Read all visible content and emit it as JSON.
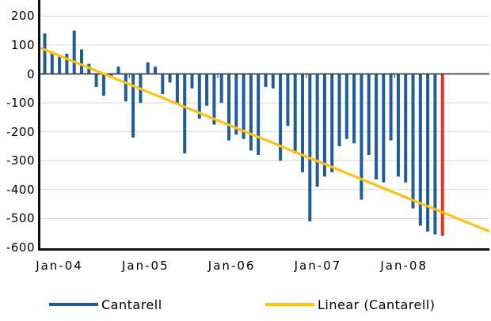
{
  "chart_data": {
    "type": "bar",
    "title": "",
    "xlabel": "",
    "ylabel": "",
    "ylim": [
      -600,
      200
    ],
    "grid": true,
    "legend_position": "bottom",
    "x": [
      "Jan-04",
      "Feb-04",
      "Mar-04",
      "Apr-04",
      "May-04",
      "Jun-04",
      "Jul-04",
      "Aug-04",
      "Sep-04",
      "Oct-04",
      "Nov-04",
      "Dec-04",
      "Jan-05",
      "Feb-05",
      "Mar-05",
      "Apr-05",
      "May-05",
      "Jun-05",
      "Jul-05",
      "Aug-05",
      "Sep-05",
      "Oct-05",
      "Nov-05",
      "Dec-05",
      "Jan-06",
      "Feb-06",
      "Mar-06",
      "Apr-06",
      "May-06",
      "Jun-06",
      "Jul-06",
      "Aug-06",
      "Sep-06",
      "Oct-06",
      "Nov-06",
      "Dec-06",
      "Jan-07",
      "Feb-07",
      "Mar-07",
      "Apr-07",
      "May-07",
      "Jun-07",
      "Jul-07",
      "Aug-07",
      "Sep-07",
      "Oct-07",
      "Nov-07",
      "Dec-07",
      "Jan-08",
      "Feb-08",
      "Mar-08",
      "Apr-08",
      "May-08",
      "Jun-08",
      "Jul-08"
    ],
    "series": [
      {
        "name": "Cantarell",
        "type": "bar",
        "values": [
          140,
          75,
          65,
          70,
          150,
          85,
          35,
          -45,
          -75,
          -10,
          25,
          -95,
          -220,
          -100,
          40,
          25,
          -70,
          -30,
          -105,
          -275,
          -50,
          -155,
          -110,
          -175,
          -100,
          -230,
          -210,
          -225,
          -265,
          -280,
          -45,
          -50,
          -300,
          -180,
          -275,
          -340,
          -510,
          -390,
          -355,
          -340,
          -250,
          -225,
          -240,
          -435,
          -280,
          -365,
          -375,
          -230,
          -355,
          -375,
          -465,
          -525,
          -545,
          -555,
          -560
        ],
        "last_bar_highlighted": true
      },
      {
        "name": "Linear (Cantarell)",
        "type": "trendline",
        "value_at_left_edge": 90,
        "value_at_right_edge": -545
      }
    ],
    "y_ticks": [
      200,
      100,
      0,
      -100,
      -200,
      -300,
      -400,
      -500,
      -600
    ],
    "x_tick_labels": [
      "Jan-04",
      "Jan-05",
      "Jan-06",
      "Jan-07",
      "Jan-08"
    ],
    "year_boundaries": [
      12,
      24,
      36,
      48
    ]
  },
  "legend": {
    "series1_label": "Cantarell",
    "series2_label": "Linear (Cantarell)"
  },
  "colors": {
    "bar_blue": "#1f5c99",
    "bar_red": "#ee2d20",
    "trend_yellow": "#ffc113",
    "gridline": "#d9d9d9",
    "zero_axis": "#404040",
    "plot_border": "#101010",
    "text": "#000000",
    "background": "#ffffff"
  }
}
